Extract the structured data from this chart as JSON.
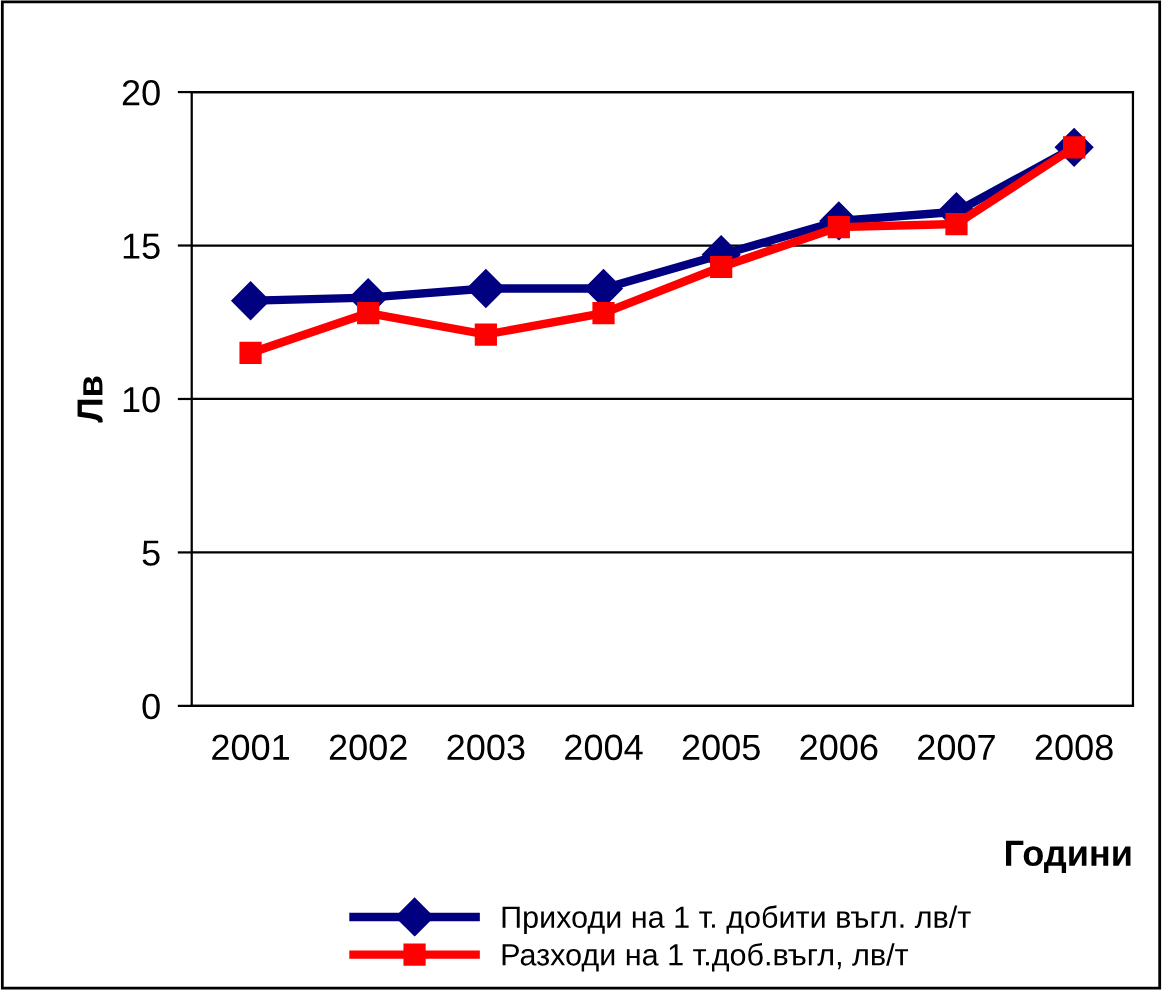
{
  "chart_data": {
    "type": "line",
    "xlabel": "Години",
    "ylabel": "Лв",
    "categories": [
      "2001",
      "2002",
      "2003",
      "2004",
      "2005",
      "2006",
      "2007",
      "2008"
    ],
    "series": [
      {
        "name": "Приходи на 1 т. добити въгл. лв/т",
        "color": "#000080",
        "marker": "diamond",
        "values": [
          13.2,
          13.3,
          13.6,
          13.6,
          14.7,
          15.8,
          16.1,
          18.2
        ]
      },
      {
        "name": "Разходи на 1 т.доб.въгл, лв/т",
        "color": "#ff0000",
        "marker": "square",
        "values": [
          11.5,
          12.8,
          12.1,
          12.8,
          14.3,
          15.6,
          15.7,
          18.2
        ]
      }
    ],
    "ylim": [
      0,
      20
    ],
    "yticks": [
      0,
      5,
      10,
      15,
      20
    ],
    "grid": "y",
    "legend": "bottom",
    "line_style": "solid"
  }
}
